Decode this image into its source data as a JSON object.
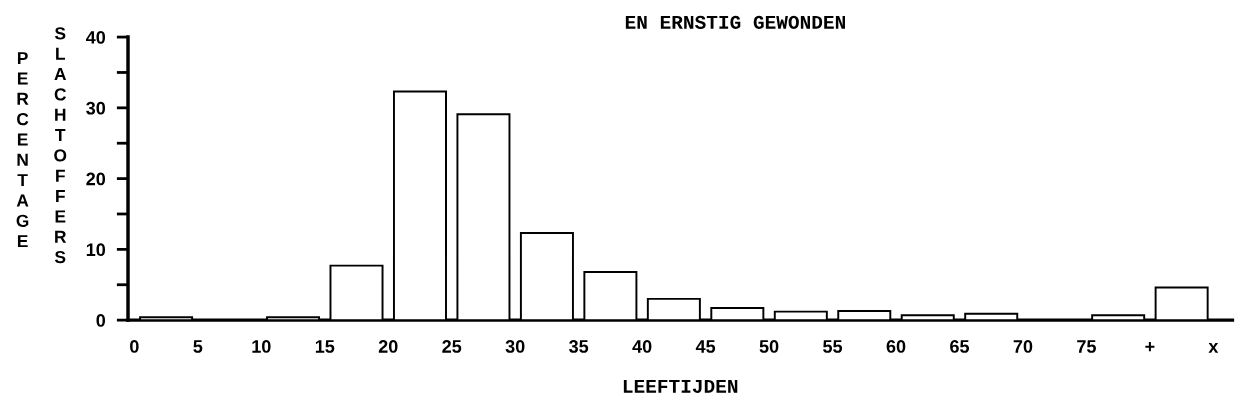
{
  "chart_data": {
    "type": "bar",
    "title": "EN ERNSTIG GEWONDEN",
    "xlabel": "LEEFTIJDEN",
    "ylabel": "PERCENTAGE SLACHTOFFERS",
    "categories": [
      "0",
      "5",
      "10",
      "15",
      "20",
      "25",
      "30",
      "35",
      "40",
      "45",
      "50",
      "55",
      "60",
      "65",
      "70",
      "75",
      "+"
    ],
    "values": [
      0.4,
      0,
      0.4,
      7.7,
      32.3,
      29.1,
      12.3,
      6.8,
      3.0,
      1.7,
      1.2,
      1.3,
      0.7,
      0.9,
      0,
      0.7,
      4.6
    ],
    "color": "#ffffff",
    "ylim": [
      0,
      40
    ],
    "yticks": [
      0,
      {
        "value": 5,
        "label": null
      },
      10,
      {
        "value": 15,
        "label": null
      },
      20,
      {
        "value": 25,
        "label": null
      },
      30,
      {
        "value": 35,
        "label": null
      },
      40
    ],
    "annotations": [
      "x"
    ],
    "grid": false,
    "legend": false
  }
}
